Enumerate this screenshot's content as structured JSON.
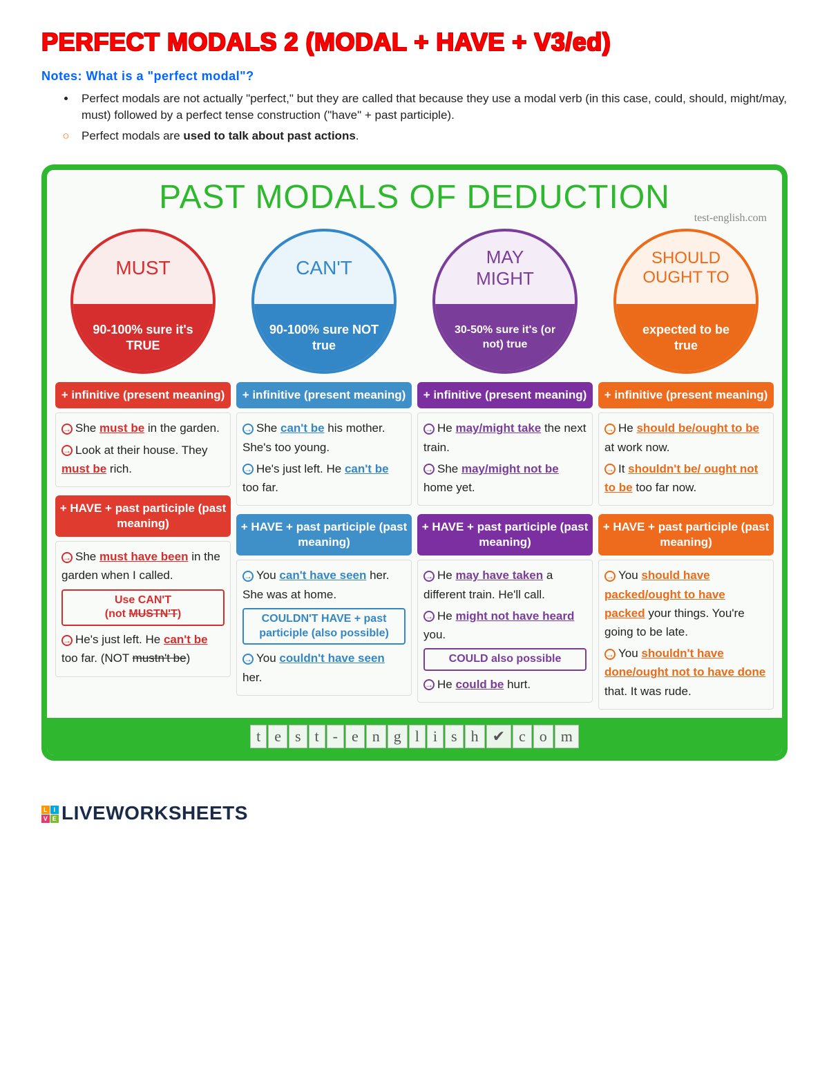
{
  "title": "PERFECT MODALS 2 (MODAL + HAVE + V3/ed)",
  "notes_heading": "Notes: What is a \"perfect modal\"?",
  "bullet1": "Perfect modals are not actually \"perfect,\" but they are called that because they use a modal verb (in this case, could, should, might/may, must) followed by a perfect tense construction (\"have\" + past participle).",
  "bullet2a": "Perfect modals are ",
  "bullet2b": "used to talk about past actions",
  "bullet2c": ".",
  "poster_title": "PAST MODALS OF DEDUCTION",
  "site_tag": "test-english.com",
  "columns": [
    {
      "circle_top": "MUST",
      "circle_bot": "90-100% sure it's TRUE",
      "block1": "+ infinitive (present meaning)",
      "block2": "+ HAVE + past participle (past meaning)"
    },
    {
      "circle_top": "CAN'T",
      "circle_bot": "90-100% sure NOT true",
      "block1": "+ infinitive (present meaning)",
      "block2": "+ HAVE + past participle (past meaning)"
    },
    {
      "circle_top": "MAY MIGHT",
      "circle_bot": "30-50% sure it's (or not) true",
      "block1": "+ infinitive (present meaning)",
      "block2": "+ HAVE + past participle (past meaning)"
    },
    {
      "circle_top": "SHOULD OUGHT TO",
      "circle_bot": "expected to be true",
      "block1": "+ infinitive (present meaning)",
      "block2": "+ HAVE + past participle (past meaning)"
    }
  ],
  "note_red1a": "Use CAN'T",
  "note_red1b": "(not ",
  "note_red1c": "MUSTN'T",
  "note_red1d": ")",
  "note_blue": "COULDN'T HAVE + past participle (also possible)",
  "note_purple": "COULD also possible",
  "brand": "LIVEWORKSHEETS",
  "footer_letters": [
    "t",
    "e",
    "s",
    "t",
    "-",
    "e",
    "n",
    "g",
    "l",
    "i",
    "s",
    "h",
    ".",
    "c",
    "o",
    "m"
  ]
}
